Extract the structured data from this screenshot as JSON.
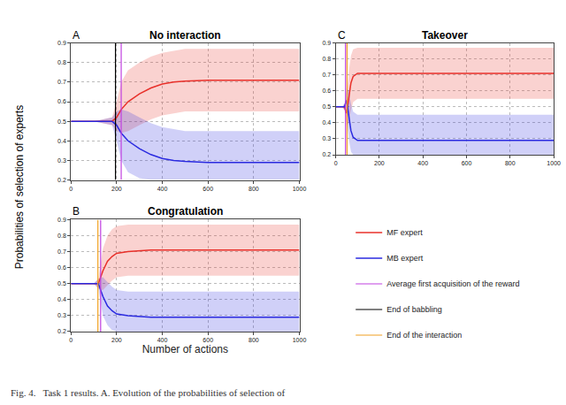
{
  "caption": "Fig. 4.   Task 1 results. A. Evolution of the probabilities of selection of",
  "chart_data": [
    {
      "type": "line",
      "label": "A",
      "title": "No interaction",
      "x": [
        0,
        100,
        180,
        200,
        220,
        250,
        300,
        350,
        400,
        450,
        500,
        600,
        700,
        800,
        900,
        1000
      ],
      "series": [
        {
          "name": "MF expert",
          "color": "#e8302a",
          "values": [
            0.5,
            0.5,
            0.5,
            0.52,
            0.56,
            0.6,
            0.64,
            0.67,
            0.69,
            0.7,
            0.705,
            0.71,
            0.71,
            0.71,
            0.71,
            0.71
          ],
          "upper": [
            0.5,
            0.5,
            0.52,
            0.6,
            0.7,
            0.76,
            0.8,
            0.83,
            0.85,
            0.86,
            0.87,
            0.87,
            0.87,
            0.87,
            0.87,
            0.87
          ],
          "lower": [
            0.5,
            0.5,
            0.48,
            0.45,
            0.44,
            0.45,
            0.48,
            0.51,
            0.53,
            0.54,
            0.55,
            0.55,
            0.55,
            0.55,
            0.55,
            0.55
          ]
        },
        {
          "name": "MB expert",
          "color": "#2a2ae0",
          "values": [
            0.5,
            0.5,
            0.5,
            0.48,
            0.44,
            0.4,
            0.36,
            0.33,
            0.31,
            0.3,
            0.295,
            0.29,
            0.29,
            0.29,
            0.29,
            0.29
          ],
          "upper": [
            0.5,
            0.5,
            0.52,
            0.55,
            0.56,
            0.55,
            0.52,
            0.49,
            0.47,
            0.46,
            0.45,
            0.45,
            0.45,
            0.45,
            0.45,
            0.45
          ],
          "lower": [
            0.5,
            0.5,
            0.48,
            0.4,
            0.3,
            0.24,
            0.21,
            0.2,
            0.2,
            0.2,
            0.2,
            0.2,
            0.2,
            0.2,
            0.2,
            0.2
          ]
        }
      ],
      "events": [
        {
          "name": "Average first acquisition of the reward",
          "color": "#c040e0",
          "x": 220
        },
        {
          "name": "End of babbling",
          "color": "#000000",
          "x": 195
        }
      ],
      "xlim": [
        0,
        1000
      ],
      "xticks": [
        0,
        200,
        400,
        600,
        800,
        1000
      ],
      "ylim": [
        0.2,
        0.9
      ],
      "yticks": [
        0.2,
        0.3,
        0.4,
        0.5,
        0.6,
        0.7,
        0.8,
        0.9
      ],
      "grid": true
    },
    {
      "type": "line",
      "label": "B",
      "title": "Congratulation",
      "xlabel": "Number of actions",
      "ylabel": "Probabilities of selection of experts",
      "x": [
        0,
        100,
        120,
        140,
        160,
        180,
        200,
        250,
        300,
        350,
        400,
        500,
        600,
        800,
        1000
      ],
      "series": [
        {
          "name": "MF expert",
          "color": "#e8302a",
          "values": [
            0.5,
            0.5,
            0.5,
            0.58,
            0.64,
            0.67,
            0.69,
            0.7,
            0.705,
            0.71,
            0.71,
            0.71,
            0.71,
            0.71,
            0.71
          ],
          "upper": [
            0.5,
            0.5,
            0.53,
            0.72,
            0.8,
            0.84,
            0.86,
            0.87,
            0.87,
            0.87,
            0.87,
            0.87,
            0.87,
            0.87,
            0.87
          ],
          "lower": [
            0.5,
            0.5,
            0.47,
            0.46,
            0.49,
            0.52,
            0.54,
            0.55,
            0.55,
            0.55,
            0.55,
            0.55,
            0.55,
            0.55,
            0.55
          ]
        },
        {
          "name": "MB expert",
          "color": "#2a2ae0",
          "values": [
            0.5,
            0.5,
            0.5,
            0.42,
            0.36,
            0.33,
            0.31,
            0.3,
            0.295,
            0.29,
            0.29,
            0.29,
            0.29,
            0.29,
            0.29
          ],
          "upper": [
            0.5,
            0.5,
            0.53,
            0.54,
            0.51,
            0.48,
            0.46,
            0.45,
            0.45,
            0.45,
            0.45,
            0.45,
            0.45,
            0.45,
            0.45
          ],
          "lower": [
            0.5,
            0.5,
            0.47,
            0.3,
            0.24,
            0.21,
            0.2,
            0.2,
            0.2,
            0.2,
            0.2,
            0.2,
            0.2,
            0.2,
            0.2
          ]
        }
      ],
      "events": [
        {
          "name": "Average first acquisition of the reward",
          "color": "#c040e0",
          "x": 130
        },
        {
          "name": "End of the interaction",
          "color": "#f0a020",
          "x": 118
        }
      ],
      "xlim": [
        0,
        1000
      ],
      "xticks": [
        0,
        200,
        400,
        600,
        800,
        1000
      ],
      "ylim": [
        0.2,
        0.9
      ],
      "yticks": [
        0.2,
        0.3,
        0.4,
        0.5,
        0.6,
        0.7,
        0.8,
        0.9
      ],
      "grid": true
    },
    {
      "type": "line",
      "label": "C",
      "title": "Takeover",
      "x": [
        0,
        30,
        40,
        50,
        60,
        70,
        80,
        100,
        150,
        200,
        400,
        600,
        800,
        1000
      ],
      "series": [
        {
          "name": "MF expert",
          "color": "#e8302a",
          "values": [
            0.5,
            0.5,
            0.5,
            0.46,
            0.55,
            0.65,
            0.69,
            0.71,
            0.71,
            0.71,
            0.71,
            0.71,
            0.71,
            0.71
          ],
          "upper": [
            0.5,
            0.5,
            0.52,
            0.55,
            0.72,
            0.82,
            0.86,
            0.87,
            0.87,
            0.87,
            0.87,
            0.87,
            0.87,
            0.87
          ],
          "lower": [
            0.5,
            0.5,
            0.48,
            0.38,
            0.4,
            0.48,
            0.53,
            0.55,
            0.55,
            0.55,
            0.55,
            0.55,
            0.55,
            0.55
          ]
        },
        {
          "name": "MB expert",
          "color": "#2a2ae0",
          "values": [
            0.5,
            0.5,
            0.5,
            0.54,
            0.45,
            0.35,
            0.31,
            0.29,
            0.29,
            0.29,
            0.29,
            0.29,
            0.29,
            0.29
          ],
          "upper": [
            0.5,
            0.5,
            0.52,
            0.62,
            0.6,
            0.52,
            0.47,
            0.45,
            0.45,
            0.45,
            0.45,
            0.45,
            0.45,
            0.45
          ],
          "lower": [
            0.5,
            0.5,
            0.48,
            0.46,
            0.3,
            0.22,
            0.2,
            0.2,
            0.2,
            0.2,
            0.2,
            0.2,
            0.2,
            0.2
          ]
        }
      ],
      "events": [
        {
          "name": "Average first acquisition of the reward",
          "color": "#c040e0",
          "x": 45
        },
        {
          "name": "End of the interaction",
          "color": "#f0a020",
          "x": 52
        }
      ],
      "xlim": [
        0,
        1000
      ],
      "xticks": [
        0,
        200,
        400,
        600,
        800,
        1000
      ],
      "ylim": [
        0.2,
        0.9
      ],
      "yticks": [
        0.2,
        0.3,
        0.4,
        0.5,
        0.6,
        0.7,
        0.8,
        0.9
      ],
      "grid": true
    }
  ]
}
